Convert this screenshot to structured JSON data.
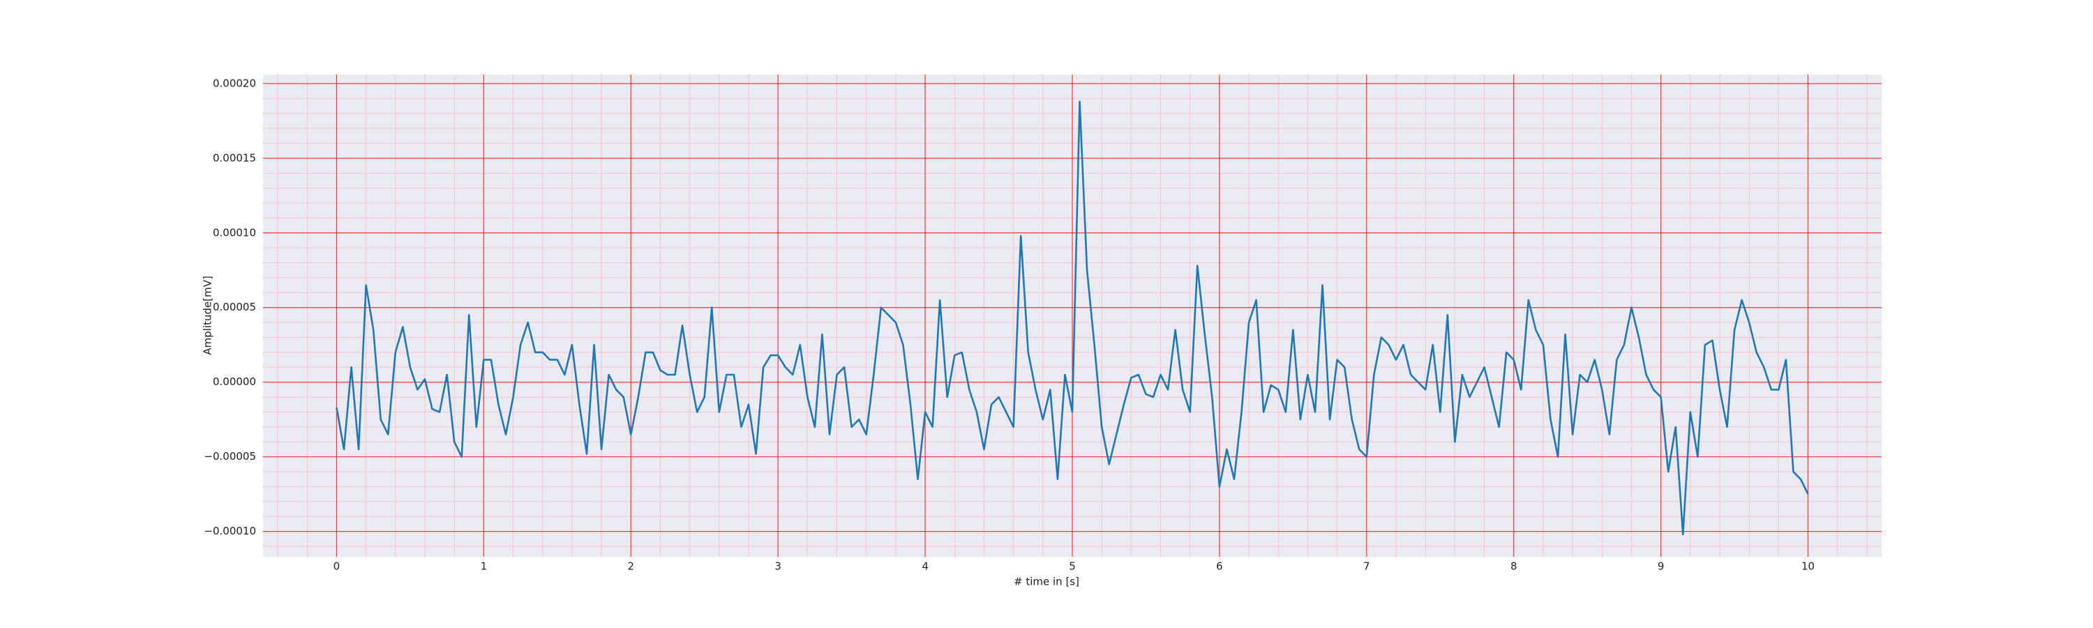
{
  "chart_data": {
    "type": "line",
    "xlabel": "# time in [s]",
    "ylabel": "Amplitude[mV]",
    "color": "#1f77b4",
    "grid": true,
    "minor_grid": true,
    "xlim": [
      -0.5,
      10.5
    ],
    "ylim": [
      -0.000117,
      0.000206
    ],
    "xticks": [
      0,
      1,
      2,
      3,
      4,
      5,
      6,
      7,
      8,
      9,
      10
    ],
    "yticks": [
      {
        "value": -0.0001,
        "label": "−0.00010"
      },
      {
        "value": -5e-05,
        "label": "−0.00005"
      },
      {
        "value": 0,
        "label": "0.00000"
      },
      {
        "value": 5e-05,
        "label": "0.00005"
      },
      {
        "value": 0.0001,
        "label": "0.00010"
      },
      {
        "value": 0.00015,
        "label": "0.00015"
      },
      {
        "value": 0.0002,
        "label": "0.00020"
      }
    ],
    "x": [
      0,
      0.05,
      0.1,
      0.15,
      0.2,
      0.25,
      0.3,
      0.35,
      0.4,
      0.45,
      0.5,
      0.55,
      0.6,
      0.65,
      0.7,
      0.75,
      0.8,
      0.85,
      0.9,
      0.95,
      1,
      1.05,
      1.1,
      1.15,
      1.2,
      1.25,
      1.3,
      1.35,
      1.4,
      1.45,
      1.5,
      1.55,
      1.6,
      1.65,
      1.7,
      1.75,
      1.8,
      1.85,
      1.9,
      1.95,
      2,
      2.05,
      2.1,
      2.15,
      2.2,
      2.25,
      2.3,
      2.35,
      2.4,
      2.45,
      2.5,
      2.55,
      2.6,
      2.65,
      2.7,
      2.75,
      2.8,
      2.85,
      2.9,
      2.95,
      3,
      3.05,
      3.1,
      3.15,
      3.2,
      3.25,
      3.3,
      3.35,
      3.4,
      3.45,
      3.5,
      3.55,
      3.6,
      3.65,
      3.7,
      3.75,
      3.8,
      3.85,
      3.9,
      3.95,
      4,
      4.05,
      4.1,
      4.15,
      4.2,
      4.25,
      4.3,
      4.35,
      4.4,
      4.45,
      4.5,
      4.55,
      4.6,
      4.65,
      4.7,
      4.75,
      4.8,
      4.85,
      4.9,
      4.95,
      5,
      5.05,
      5.1,
      5.15,
      5.2,
      5.25,
      5.3,
      5.35,
      5.4,
      5.45,
      5.5,
      5.55,
      5.6,
      5.65,
      5.7,
      5.75,
      5.8,
      5.85,
      5.9,
      5.95,
      6,
      6.05,
      6.1,
      6.15,
      6.2,
      6.25,
      6.3,
      6.35,
      6.4,
      6.45,
      6.5,
      6.55,
      6.6,
      6.65,
      6.7,
      6.75,
      6.8,
      6.85,
      6.9,
      6.95,
      7,
      7.05,
      7.1,
      7.15,
      7.2,
      7.25,
      7.3,
      7.35,
      7.4,
      7.45,
      7.5,
      7.55,
      7.6,
      7.65,
      7.7,
      7.75,
      7.8,
      7.85,
      7.9,
      7.95,
      8,
      8.05,
      8.1,
      8.15,
      8.2,
      8.25,
      8.3,
      8.35,
      8.4,
      8.45,
      8.5,
      8.55,
      8.6,
      8.65,
      8.7,
      8.75,
      8.8,
      8.85,
      8.9,
      8.95,
      9,
      9.05,
      9.1,
      9.15,
      9.2,
      9.25,
      9.3,
      9.35,
      9.4,
      9.45,
      9.5,
      9.55,
      9.6,
      9.65,
      9.7,
      9.75,
      9.8,
      9.85,
      9.9,
      9.95,
      10
    ],
    "values": [
      -1.7e-05,
      -4.5e-05,
      1e-05,
      -4.5e-05,
      6.5e-05,
      3.5e-05,
      -2.5e-05,
      -3.5e-05,
      2e-05,
      3.7e-05,
      1e-05,
      -5e-06,
      2e-06,
      -1.8e-05,
      -2e-05,
      5e-06,
      -4e-05,
      -5e-05,
      4.5e-05,
      -3e-05,
      1.5e-05,
      1.5e-05,
      -1.5e-05,
      -3.5e-05,
      -1e-05,
      2.5e-05,
      4e-05,
      2e-05,
      2e-05,
      1.5e-05,
      1.5e-05,
      5e-06,
      2.5e-05,
      -1.5e-05,
      -4.8e-05,
      2.5e-05,
      -4.5e-05,
      5e-06,
      -5e-06,
      -1e-05,
      -3.5e-05,
      -1e-05,
      2e-05,
      2e-05,
      8e-06,
      5e-06,
      5e-06,
      3.8e-05,
      5e-06,
      -2e-05,
      -1e-05,
      5e-05,
      -2e-05,
      5e-06,
      5e-06,
      -3e-05,
      -1.5e-05,
      -4.8e-05,
      1e-05,
      1.8e-05,
      1.8e-05,
      1e-05,
      5e-06,
      2.5e-05,
      -1e-05,
      -3e-05,
      3.2e-05,
      -3.5e-05,
      5e-06,
      1e-05,
      -3e-05,
      -2.5e-05,
      -3.5e-05,
      5e-06,
      5e-05,
      4.5e-05,
      4e-05,
      2.5e-05,
      -1.5e-05,
      -6.5e-05,
      -2e-05,
      -3e-05,
      5.5e-05,
      -1e-05,
      1.8e-05,
      2e-05,
      -5e-06,
      -2e-05,
      -4.5e-05,
      -1.5e-05,
      -1e-05,
      -2e-05,
      -3e-05,
      9.8e-05,
      2e-05,
      -5e-06,
      -2.5e-05,
      -5e-06,
      -6.5e-05,
      5e-06,
      -2e-05,
      0.000188,
      7.5e-05,
      2.5e-05,
      -3e-05,
      -5.5e-05,
      -3.5e-05,
      -1.5e-05,
      3e-06,
      5e-06,
      -8e-06,
      -1e-05,
      5e-06,
      -5e-06,
      3.5e-05,
      -5e-06,
      -2e-05,
      7.8e-05,
      3.2e-05,
      -1e-05,
      -7e-05,
      -4.5e-05,
      -6.5e-05,
      -2e-05,
      4e-05,
      5.5e-05,
      -2e-05,
      -2e-06,
      -5e-06,
      -2e-05,
      3.5e-05,
      -2.5e-05,
      5e-06,
      -2e-05,
      6.5e-05,
      -2.5e-05,
      1.5e-05,
      1e-05,
      -2.5e-05,
      -4.5e-05,
      -5e-05,
      5e-06,
      3e-05,
      2.5e-05,
      1.5e-05,
      2.5e-05,
      5e-06,
      0.0,
      -5e-06,
      2.5e-05,
      -2e-05,
      4.5e-05,
      -4e-05,
      5e-06,
      -1e-05,
      0.0,
      1e-05,
      -1e-05,
      -3e-05,
      2e-05,
      1.5e-05,
      -5e-06,
      5.5e-05,
      3.5e-05,
      2.5e-05,
      -2.5e-05,
      -5e-05,
      3.2e-05,
      -3.5e-05,
      5e-06,
      0.0,
      1.5e-05,
      -5e-06,
      -3.5e-05,
      1.5e-05,
      2.5e-05,
      5e-05,
      3e-05,
      5e-06,
      -5e-06,
      -1e-05,
      -6e-05,
      -3e-05,
      -0.000102,
      -2e-05,
      -5e-05,
      2.5e-05,
      2.8e-05,
      -5e-06,
      -3e-05,
      3.5e-05,
      5.5e-05,
      4e-05,
      2e-05,
      1e-05,
      -5e-06,
      -5e-06,
      1.5e-05,
      -6e-05,
      -6.5e-05,
      -7.5e-05
    ]
  }
}
